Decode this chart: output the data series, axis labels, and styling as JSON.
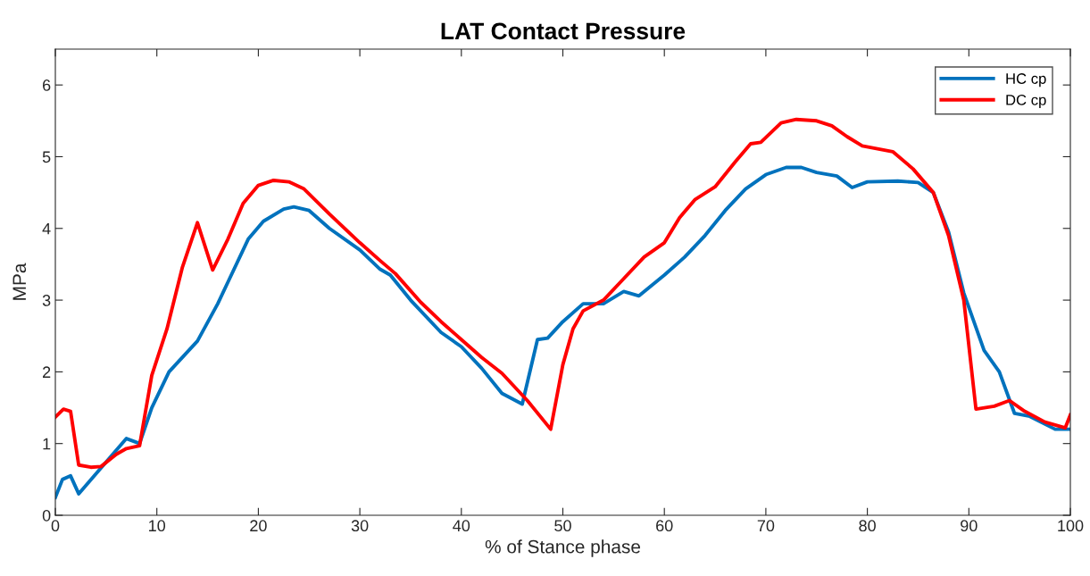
{
  "chart_data": {
    "type": "line",
    "title": "LAT Contact Pressure",
    "xlabel": "% of Stance phase",
    "ylabel": "MPa",
    "xlim": [
      0,
      100
    ],
    "ylim": [
      0,
      6.5
    ],
    "xticks": [
      0,
      10,
      20,
      30,
      40,
      50,
      60,
      70,
      80,
      90,
      100
    ],
    "yticks": [
      0,
      1,
      2,
      3,
      4,
      5,
      6
    ],
    "grid": false,
    "legend": "top right",
    "marker": "none",
    "line_style": "solid",
    "series": [
      {
        "name": "HC cp",
        "color": "#0072bd",
        "x": [
          0,
          0.7,
          1.5,
          2.3,
          7,
          8.3,
          9.5,
          11.2,
          14,
          16,
          19,
          20.5,
          22.5,
          23.5,
          25,
          27,
          30,
          32,
          33,
          35,
          38,
          40,
          42,
          44,
          46,
          47.5,
          48.5,
          50,
          52,
          54,
          56,
          57.5,
          60,
          62,
          64,
          66,
          68,
          70,
          72,
          73.5,
          75,
          77,
          78.5,
          80,
          83,
          85,
          86.5,
          88,
          89.5,
          91.5,
          93,
          94.5,
          96,
          98.5,
          100
        ],
        "values": [
          0.25,
          0.5,
          0.55,
          0.3,
          1.07,
          1.0,
          1.5,
          2.0,
          2.43,
          2.95,
          3.85,
          4.1,
          4.27,
          4.3,
          4.25,
          4.0,
          3.7,
          3.43,
          3.35,
          3.0,
          2.55,
          2.35,
          2.05,
          1.7,
          1.55,
          2.45,
          2.47,
          2.7,
          2.95,
          2.95,
          3.12,
          3.06,
          3.35,
          3.6,
          3.9,
          4.25,
          4.55,
          4.75,
          4.85,
          4.85,
          4.78,
          4.73,
          4.57,
          4.65,
          4.66,
          4.64,
          4.5,
          3.95,
          3.1,
          2.3,
          2.0,
          1.42,
          1.38,
          1.2,
          1.2
        ]
      },
      {
        "name": "DC cp",
        "color": "#ff0000",
        "x": [
          0,
          0.8,
          1.5,
          2.3,
          3.5,
          4.5,
          6,
          7,
          8.3,
          9.5,
          11,
          12.5,
          14,
          15.5,
          17,
          18.5,
          20,
          21.5,
          23,
          24.5,
          27,
          30,
          32,
          33.5,
          36,
          38,
          40,
          42,
          44,
          46.5,
          48.8,
          50,
          51,
          52,
          54,
          56,
          58,
          60,
          61.5,
          63,
          65,
          67,
          68.5,
          69.5,
          71.5,
          73,
          75,
          76.5,
          78,
          79.5,
          82.5,
          84.5,
          86.5,
          88,
          89.5,
          90.7,
          92.5,
          94,
          95.5,
          97.5,
          99.5,
          100
        ],
        "values": [
          1.37,
          1.48,
          1.45,
          0.7,
          0.67,
          0.68,
          0.85,
          0.93,
          0.97,
          1.95,
          2.6,
          3.45,
          4.08,
          3.42,
          3.85,
          4.35,
          4.6,
          4.67,
          4.65,
          4.55,
          4.2,
          3.8,
          3.55,
          3.37,
          2.97,
          2.7,
          2.45,
          2.2,
          1.98,
          1.6,
          1.2,
          2.1,
          2.6,
          2.85,
          3.0,
          3.3,
          3.6,
          3.8,
          4.15,
          4.4,
          4.58,
          4.93,
          5.18,
          5.2,
          5.47,
          5.52,
          5.5,
          5.43,
          5.28,
          5.15,
          5.07,
          4.83,
          4.5,
          3.9,
          3.0,
          1.48,
          1.52,
          1.6,
          1.45,
          1.3,
          1.22,
          1.4
        ]
      }
    ]
  }
}
